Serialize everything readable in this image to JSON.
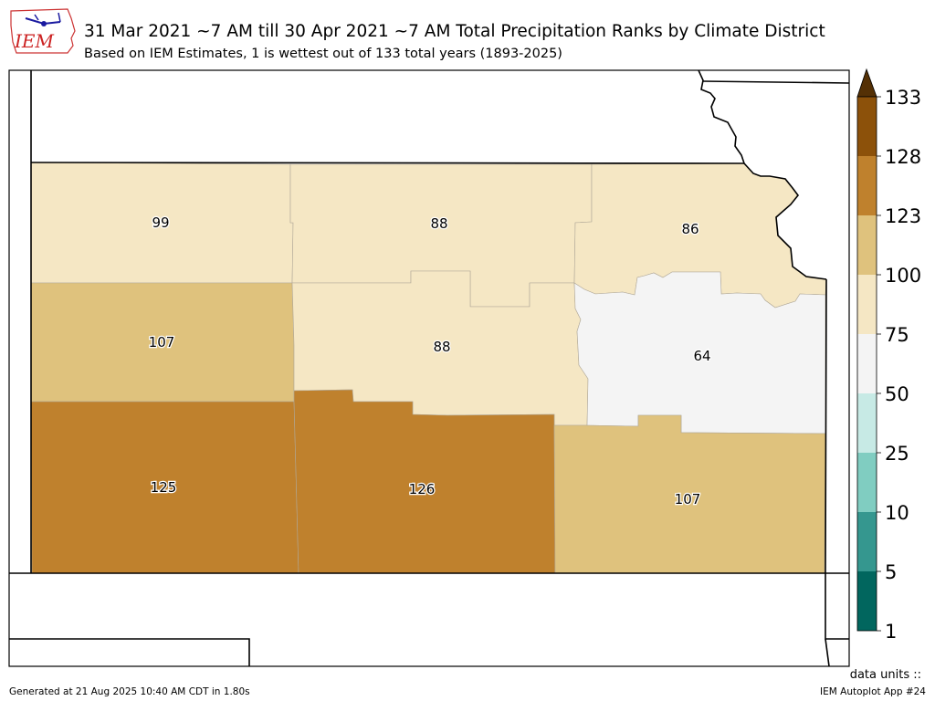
{
  "header": {
    "logo_text": "IEM",
    "title": "31 Mar 2021 ~7 AM till 30 Apr 2021 ~7 AM Total Precipitation Ranks by Climate District",
    "subtitle": "Based on IEM Estimates, 1 is wettest out of 133 total years (1893-2025)"
  },
  "districts": [
    {
      "id": "nw",
      "rank": "99",
      "color": "#f5e7c4"
    },
    {
      "id": "nc",
      "rank": "88",
      "color": "#f5e7c4"
    },
    {
      "id": "ne",
      "rank": "86",
      "color": "#f5e7c4"
    },
    {
      "id": "wc",
      "rank": "107",
      "color": "#dfc27d"
    },
    {
      "id": "c",
      "rank": "88",
      "color": "#f5e7c4"
    },
    {
      "id": "ec",
      "rank": "64",
      "color": "#f4f4f4"
    },
    {
      "id": "sw",
      "rank": "125",
      "color": "#bf812d"
    },
    {
      "id": "sc",
      "rank": "126",
      "color": "#bf812d"
    },
    {
      "id": "se",
      "rank": "107",
      "color": "#dfc27d"
    }
  ],
  "colorbar": {
    "ticks": [
      "1",
      "5",
      "10",
      "25",
      "50",
      "75",
      "100",
      "123",
      "128",
      "133"
    ],
    "colors": [
      "#01665e",
      "#35978f",
      "#80cdc1",
      "#c7eae5",
      "#f4f4f4",
      "#f5e7c4",
      "#dfc27d",
      "#bf812d",
      "#8c510a"
    ],
    "extend_color": "#543005"
  },
  "units_label": "data units ::",
  "footer": {
    "generated": "Generated at 21 Aug 2025 10:40 AM CDT in 1.80s",
    "app": "IEM Autoplot App #24"
  }
}
